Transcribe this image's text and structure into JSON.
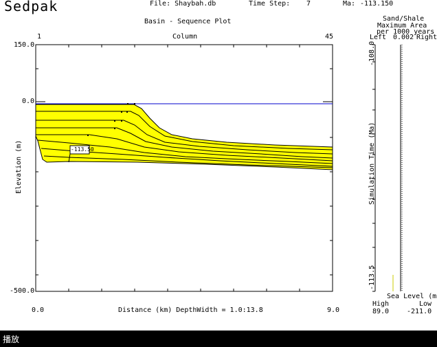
{
  "app": {
    "title": "Sedpak"
  },
  "header": {
    "file": "File: Shaybah.db",
    "time_step": "Time Step:",
    "time_step_value": "7",
    "ma_label": "Ma:",
    "ma_value": "-113.150"
  },
  "plot": {
    "title": "Basin - Sequence Plot",
    "column_label": "Column",
    "column_min": "1",
    "column_max": "45",
    "y_ticks": [
      "150.0",
      "0.0",
      "-500.0"
    ],
    "ylabel": "Elevation (m)",
    "x_min": "0.0",
    "x_max": "9.0",
    "xlabel": "Distance (km)  DepthWidth = 1.0:13.8",
    "annotation": "-113.50"
  },
  "side_panel": {
    "title_1": "Sand/Shale",
    "title_2": "Maximum Area",
    "title_3": "per 1000 years",
    "left_label": "Left",
    "ratio_value": "0.002",
    "right_label": "Right",
    "time_top": "-108.0",
    "time_bottom": "-113.5",
    "ylabel": "Simulation Time (Ma)",
    "sea_level_label": "Sea  Level (m)",
    "high_label": "High",
    "low_label": "Low",
    "high_value": "89.0",
    "low_value": "-211.0"
  },
  "taskbar": {
    "label": "播放"
  },
  "colors": {
    "fill": "#ffff00",
    "sea": "#0000cc",
    "line": "#000000"
  }
}
